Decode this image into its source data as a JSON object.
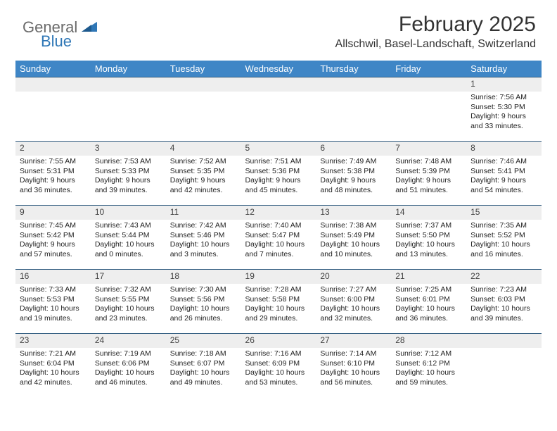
{
  "brand": {
    "part1": "General",
    "part2": "Blue",
    "color_gray": "#6b6b6b",
    "color_blue": "#2f77b6"
  },
  "header": {
    "title": "February 2025",
    "subtitle": "Allschwil, Basel-Landschaft, Switzerland",
    "title_fontsize": 30,
    "subtitle_fontsize": 16
  },
  "colors": {
    "header_bar": "#3f86c6",
    "header_text": "#ffffff",
    "num_row_bg": "#eeeeee",
    "num_row_border_top": "#2f5b7f",
    "body_text": "#222222",
    "page_bg": "#ffffff"
  },
  "typography": {
    "day_header_fontsize": 13,
    "daynum_fontsize": 12,
    "detail_fontsize": 10.5,
    "font_family": "Arial, Helvetica, sans-serif"
  },
  "calendar": {
    "type": "table",
    "day_names": [
      "Sunday",
      "Monday",
      "Tuesday",
      "Wednesday",
      "Thursday",
      "Friday",
      "Saturday"
    ],
    "weeks": [
      {
        "nums": [
          "",
          "",
          "",
          "",
          "",
          "",
          "1"
        ],
        "details": [
          null,
          null,
          null,
          null,
          null,
          null,
          {
            "sunrise": "Sunrise: 7:56 AM",
            "sunset": "Sunset: 5:30 PM",
            "day1": "Daylight: 9 hours",
            "day2": "and 33 minutes."
          }
        ]
      },
      {
        "nums": [
          "2",
          "3",
          "4",
          "5",
          "6",
          "7",
          "8"
        ],
        "details": [
          {
            "sunrise": "Sunrise: 7:55 AM",
            "sunset": "Sunset: 5:31 PM",
            "day1": "Daylight: 9 hours",
            "day2": "and 36 minutes."
          },
          {
            "sunrise": "Sunrise: 7:53 AM",
            "sunset": "Sunset: 5:33 PM",
            "day1": "Daylight: 9 hours",
            "day2": "and 39 minutes."
          },
          {
            "sunrise": "Sunrise: 7:52 AM",
            "sunset": "Sunset: 5:35 PM",
            "day1": "Daylight: 9 hours",
            "day2": "and 42 minutes."
          },
          {
            "sunrise": "Sunrise: 7:51 AM",
            "sunset": "Sunset: 5:36 PM",
            "day1": "Daylight: 9 hours",
            "day2": "and 45 minutes."
          },
          {
            "sunrise": "Sunrise: 7:49 AM",
            "sunset": "Sunset: 5:38 PM",
            "day1": "Daylight: 9 hours",
            "day2": "and 48 minutes."
          },
          {
            "sunrise": "Sunrise: 7:48 AM",
            "sunset": "Sunset: 5:39 PM",
            "day1": "Daylight: 9 hours",
            "day2": "and 51 minutes."
          },
          {
            "sunrise": "Sunrise: 7:46 AM",
            "sunset": "Sunset: 5:41 PM",
            "day1": "Daylight: 9 hours",
            "day2": "and 54 minutes."
          }
        ]
      },
      {
        "nums": [
          "9",
          "10",
          "11",
          "12",
          "13",
          "14",
          "15"
        ],
        "details": [
          {
            "sunrise": "Sunrise: 7:45 AM",
            "sunset": "Sunset: 5:42 PM",
            "day1": "Daylight: 9 hours",
            "day2": "and 57 minutes."
          },
          {
            "sunrise": "Sunrise: 7:43 AM",
            "sunset": "Sunset: 5:44 PM",
            "day1": "Daylight: 10 hours",
            "day2": "and 0 minutes."
          },
          {
            "sunrise": "Sunrise: 7:42 AM",
            "sunset": "Sunset: 5:46 PM",
            "day1": "Daylight: 10 hours",
            "day2": "and 3 minutes."
          },
          {
            "sunrise": "Sunrise: 7:40 AM",
            "sunset": "Sunset: 5:47 PM",
            "day1": "Daylight: 10 hours",
            "day2": "and 7 minutes."
          },
          {
            "sunrise": "Sunrise: 7:38 AM",
            "sunset": "Sunset: 5:49 PM",
            "day1": "Daylight: 10 hours",
            "day2": "and 10 minutes."
          },
          {
            "sunrise": "Sunrise: 7:37 AM",
            "sunset": "Sunset: 5:50 PM",
            "day1": "Daylight: 10 hours",
            "day2": "and 13 minutes."
          },
          {
            "sunrise": "Sunrise: 7:35 AM",
            "sunset": "Sunset: 5:52 PM",
            "day1": "Daylight: 10 hours",
            "day2": "and 16 minutes."
          }
        ]
      },
      {
        "nums": [
          "16",
          "17",
          "18",
          "19",
          "20",
          "21",
          "22"
        ],
        "details": [
          {
            "sunrise": "Sunrise: 7:33 AM",
            "sunset": "Sunset: 5:53 PM",
            "day1": "Daylight: 10 hours",
            "day2": "and 19 minutes."
          },
          {
            "sunrise": "Sunrise: 7:32 AM",
            "sunset": "Sunset: 5:55 PM",
            "day1": "Daylight: 10 hours",
            "day2": "and 23 minutes."
          },
          {
            "sunrise": "Sunrise: 7:30 AM",
            "sunset": "Sunset: 5:56 PM",
            "day1": "Daylight: 10 hours",
            "day2": "and 26 minutes."
          },
          {
            "sunrise": "Sunrise: 7:28 AM",
            "sunset": "Sunset: 5:58 PM",
            "day1": "Daylight: 10 hours",
            "day2": "and 29 minutes."
          },
          {
            "sunrise": "Sunrise: 7:27 AM",
            "sunset": "Sunset: 6:00 PM",
            "day1": "Daylight: 10 hours",
            "day2": "and 32 minutes."
          },
          {
            "sunrise": "Sunrise: 7:25 AM",
            "sunset": "Sunset: 6:01 PM",
            "day1": "Daylight: 10 hours",
            "day2": "and 36 minutes."
          },
          {
            "sunrise": "Sunrise: 7:23 AM",
            "sunset": "Sunset: 6:03 PM",
            "day1": "Daylight: 10 hours",
            "day2": "and 39 minutes."
          }
        ]
      },
      {
        "nums": [
          "23",
          "24",
          "25",
          "26",
          "27",
          "28",
          ""
        ],
        "details": [
          {
            "sunrise": "Sunrise: 7:21 AM",
            "sunset": "Sunset: 6:04 PM",
            "day1": "Daylight: 10 hours",
            "day2": "and 42 minutes."
          },
          {
            "sunrise": "Sunrise: 7:19 AM",
            "sunset": "Sunset: 6:06 PM",
            "day1": "Daylight: 10 hours",
            "day2": "and 46 minutes."
          },
          {
            "sunrise": "Sunrise: 7:18 AM",
            "sunset": "Sunset: 6:07 PM",
            "day1": "Daylight: 10 hours",
            "day2": "and 49 minutes."
          },
          {
            "sunrise": "Sunrise: 7:16 AM",
            "sunset": "Sunset: 6:09 PM",
            "day1": "Daylight: 10 hours",
            "day2": "and 53 minutes."
          },
          {
            "sunrise": "Sunrise: 7:14 AM",
            "sunset": "Sunset: 6:10 PM",
            "day1": "Daylight: 10 hours",
            "day2": "and 56 minutes."
          },
          {
            "sunrise": "Sunrise: 7:12 AM",
            "sunset": "Sunset: 6:12 PM",
            "day1": "Daylight: 10 hours",
            "day2": "and 59 minutes."
          },
          null
        ]
      }
    ]
  }
}
